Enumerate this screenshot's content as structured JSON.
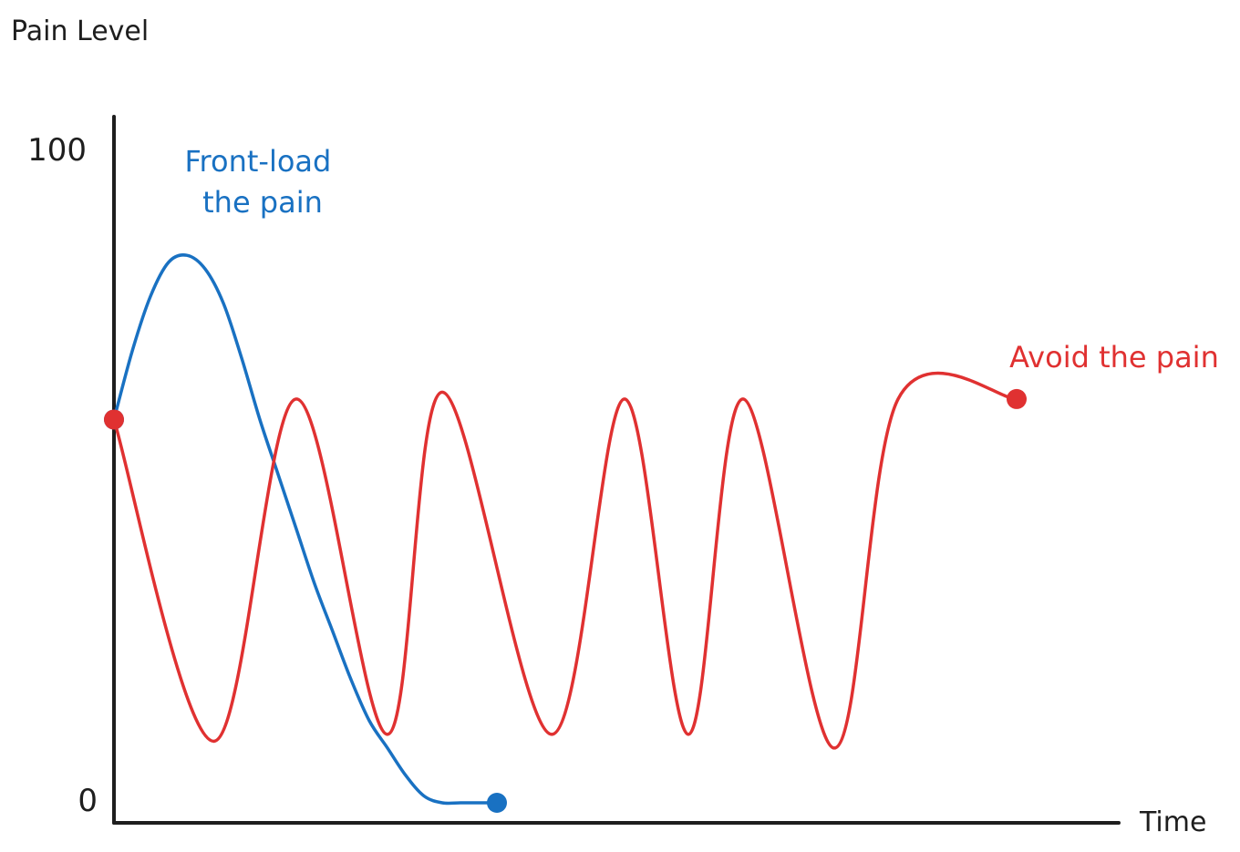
{
  "chart_data": {
    "type": "line",
    "ylabel": "Pain Level",
    "xlabel": "Time",
    "ylim": [
      0,
      100
    ],
    "y_ticks": [
      "0",
      "100"
    ],
    "grid": false,
    "series": [
      {
        "name": "Front-load the pain",
        "label_lines": [
          "Front-load",
          "the pain"
        ],
        "color": "#1971c2",
        "x": [
          0,
          2,
          4,
          6,
          8,
          10,
          12,
          14,
          16,
          18,
          20,
          22,
          24,
          26,
          28,
          30,
          32,
          34,
          36,
          38,
          40,
          42
        ],
        "y": [
          56,
          66,
          74,
          79,
          80,
          78,
          73,
          65,
          56,
          48,
          40,
          32,
          25,
          18,
          12,
          8,
          4,
          1,
          0,
          0,
          0,
          0
        ],
        "end_marker": true
      },
      {
        "name": "Avoid the pain",
        "label_lines": [
          "Avoid the pain"
        ],
        "color": "#e03131",
        "x": [
          0,
          11,
          20,
          30,
          36,
          48,
          56,
          63,
          69,
          79,
          86,
          99
        ],
        "y": [
          56,
          9,
          59,
          10,
          60,
          10,
          59,
          10,
          59,
          8,
          59,
          59
        ],
        "end_marker": true
      }
    ]
  }
}
